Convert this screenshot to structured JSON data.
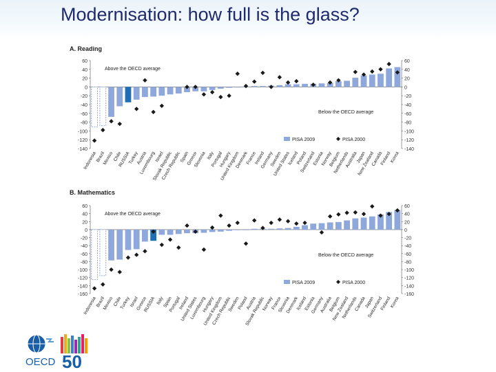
{
  "slide": {
    "title": "Modernisation: how full is the glass?"
  },
  "colors": {
    "bar_2009": "#8fa8dc",
    "bar_highlight": "#1f6fb5",
    "marker": "#1a1a1a",
    "title_text": "#1f2a6e",
    "logo_blue": "#1a5ea8"
  },
  "logo": {
    "text": "OECD",
    "number": "50"
  },
  "chart_data": [
    {
      "type": "bar",
      "title": "A. Reading",
      "annotation_above": "Above the OECD average",
      "annotation_below": "Below the OECD average",
      "ylim": [
        -140,
        60
      ],
      "yticks": [
        60,
        40,
        20,
        0,
        -20,
        -40,
        -60,
        -80,
        -100,
        -120,
        -140
      ],
      "ytick_labels": [
        "60",
        "40",
        "20",
        "0",
        "-20",
        "-40",
        "-60",
        "-80",
        "-100",
        "-120",
        "-140"
      ],
      "grid": false,
      "legend_position": "bottom-right",
      "highlight_category": "Russia",
      "categories": [
        "Indonesia",
        "Brazil",
        "Mexico",
        "Chile",
        "RUSSIA",
        "Turkey",
        "Austria",
        "Luxembourg",
        "Israel",
        "Slovak Republic",
        "Czech Republic",
        "Spain",
        "Greece",
        "Slovenia",
        "Italy",
        "Portugal",
        "Hungary",
        "United Kingdom",
        "Denmark",
        "France",
        "Ireland",
        "Germany",
        "Sweden",
        "United States",
        "Iceland",
        "Poland",
        "Switzerland",
        "Estonia",
        "Norway",
        "Belgium",
        "Netherlands",
        "Australia",
        "Japan",
        "New Zealand",
        "Canada",
        "Finland",
        "Korea"
      ],
      "series": [
        {
          "name": "PISA 2009",
          "kind": "bar",
          "values": [
            -91,
            -88,
            -68,
            -44,
            -35,
            -29,
            -23,
            -22,
            -20,
            -17,
            -15,
            -12,
            -10,
            -10,
            -7,
            -4,
            -2,
            0,
            1,
            2,
            2,
            3,
            4,
            6,
            6,
            7,
            7,
            8,
            9,
            13,
            14,
            21,
            26,
            28,
            30,
            42,
            45
          ]
        },
        {
          "name": "PISA 2000",
          "kind": "marker",
          "values": [
            -122,
            -98,
            -78,
            -84,
            null,
            -50,
            15,
            -57,
            -43,
            null,
            null,
            0,
            0,
            -17,
            -12,
            -23,
            -20,
            30,
            2,
            12,
            32,
            0,
            22,
            10,
            13,
            null,
            5,
            null,
            10,
            15,
            null,
            34,
            28,
            35,
            40,
            52,
            33
          ]
        }
      ]
    },
    {
      "type": "bar",
      "title": "B. Mathematics",
      "annotation_above": "Above the OECD average",
      "annotation_below": "Below the OECD average",
      "ylim": [
        -160,
        60
      ],
      "yticks": [
        60,
        50,
        40,
        30,
        20,
        10,
        0,
        -10,
        -20,
        -30,
        -40,
        -50,
        -60,
        -70,
        -80,
        -90,
        -100,
        -110,
        -120,
        -130,
        -140,
        -150,
        -160
      ],
      "ytick_labels": [
        "60",
        "40",
        "20",
        "0",
        "-20",
        "-40",
        "-60",
        "-80",
        "-100",
        "-120",
        "-140",
        "-160"
      ],
      "ytick_label_values": [
        60,
        40,
        20,
        0,
        -20,
        -40,
        -60,
        -80,
        -100,
        -120,
        -140,
        -160
      ],
      "grid": false,
      "legend_position": "bottom-right",
      "highlight_category": "Russia",
      "categories": [
        "Indonesia",
        "Brazil",
        "Mexico",
        "Chile",
        "Turkey",
        "Israel",
        "Greece",
        "RUSSIA",
        "Italy",
        "Spain",
        "Portugal",
        "Ireland",
        "United States",
        "Luxembourg",
        "Hungary",
        "United Kingdom",
        "Czech Republic",
        "Sweden",
        "Poland",
        "Austria",
        "Slovak Republic",
        "Norway",
        "France",
        "Slovenia",
        "Denmark",
        "Iceland",
        "Estonia",
        "Germany",
        "Australia",
        "Belgium",
        "New Zealand",
        "Netherlands",
        "Canada",
        "Japan",
        "Switzerland",
        "Finland",
        "Korea"
      ],
      "series": [
        {
          "name": "PISA 2009",
          "kind": "bar",
          "values": [
            -125,
            -115,
            -77,
            -75,
            -51,
            -49,
            -30,
            -28,
            -13,
            -13,
            -11,
            -9,
            -9,
            -8,
            -6,
            -5,
            -3,
            -1,
            0,
            2,
            2,
            2,
            3,
            4,
            7,
            11,
            15,
            16,
            18,
            19,
            23,
            28,
            30,
            33,
            38,
            44,
            49
          ]
        },
        {
          "name": "PISA 2000",
          "kind": "marker",
          "values": [
            -147,
            -137,
            -100,
            -106,
            -70,
            -63,
            -54,
            -5,
            -38,
            -25,
            -45,
            10,
            -5,
            -50,
            5,
            35,
            10,
            17,
            -35,
            23,
            4,
            17,
            25,
            21,
            15,
            17,
            null,
            -7,
            33,
            38,
            42,
            43,
            39,
            58,
            35,
            39,
            48
          ]
        }
      ]
    }
  ]
}
